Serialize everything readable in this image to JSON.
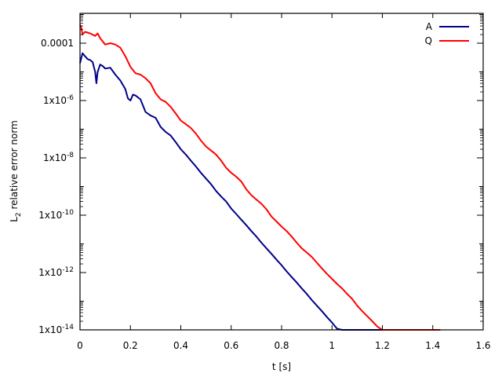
{
  "chart_data": {
    "type": "line",
    "title": "",
    "xlabel": "t [s]",
    "ylabel": "L2 relative error norm",
    "ylabel_main": "L",
    "ylabel_sub": "2",
    "ylabel_rest": " relative error norm",
    "xscale": "linear",
    "yscale": "log",
    "xlim": [
      0,
      1.6
    ],
    "ylim": [
      1e-14,
      0.0012
    ],
    "grid": false,
    "legend_position": "top-right",
    "x_ticks": [
      "0",
      "0.2",
      "0.4",
      "0.6",
      "0.8",
      "1",
      "1.2",
      "1.4",
      "1.6"
    ],
    "y_ticks": [
      {
        "value": 0.0001,
        "label": "0.0001",
        "base": "0.0001",
        "exp": ""
      },
      {
        "value": 1e-06,
        "label": "1x10-6",
        "base": "1x10",
        "exp": "-6"
      },
      {
        "value": 1e-08,
        "label": "1x10-8",
        "base": "1x10",
        "exp": "-8"
      },
      {
        "value": 1e-10,
        "label": "1x10-10",
        "base": "1x10",
        "exp": "-10"
      },
      {
        "value": 1e-12,
        "label": "1x10-12",
        "base": "1x10",
        "exp": "-12"
      },
      {
        "value": 1e-14,
        "label": "1x10-14",
        "base": "1x10",
        "exp": "-14"
      }
    ],
    "series": [
      {
        "name": "A",
        "color": "#00008b",
        "x": [
          0.0,
          0.005,
          0.01,
          0.02,
          0.03,
          0.04,
          0.05,
          0.06,
          0.065,
          0.07,
          0.08,
          0.09,
          0.1,
          0.12,
          0.14,
          0.16,
          0.18,
          0.19,
          0.2,
          0.21,
          0.22,
          0.24,
          0.26,
          0.28,
          0.3,
          0.32,
          0.34,
          0.36,
          0.38,
          0.4,
          0.42,
          0.44,
          0.46,
          0.48,
          0.5,
          0.52,
          0.54,
          0.56,
          0.58,
          0.6,
          0.62,
          0.64,
          0.66,
          0.68,
          0.7,
          0.72,
          0.74,
          0.76,
          0.78,
          0.8,
          0.82,
          0.84,
          0.86,
          0.88,
          0.9,
          0.92,
          0.94,
          0.96,
          0.98,
          1.0,
          1.02,
          1.04,
          1.06,
          1.08,
          1.1,
          1.12,
          1.14,
          1.16,
          1.18,
          1.2,
          1.22,
          1.24,
          1.26,
          1.28,
          1.3
        ],
        "y": [
          2e-05,
          3e-05,
          4.5e-05,
          3.5e-05,
          2.8e-05,
          2.6e-05,
          2.2e-05,
          1e-05,
          4e-06,
          1e-05,
          1.8e-05,
          1.6e-05,
          1.3e-05,
          1.4e-05,
          8e-06,
          5e-06,
          2.5e-06,
          1.2e-06,
          1e-06,
          1.6e-06,
          1.5e-06,
          1.1e-06,
          4e-07,
          3e-07,
          2.5e-07,
          1.2e-07,
          8e-08,
          6e-08,
          3.5e-08,
          2e-08,
          1.3e-08,
          8e-09,
          5e-09,
          3e-09,
          1.9e-09,
          1.2e-09,
          7e-10,
          4.5e-10,
          3e-10,
          1.7e-10,
          1.1e-10,
          7e-11,
          4.5e-11,
          2.8e-11,
          1.8e-11,
          1.1e-11,
          7e-12,
          4.5e-12,
          2.8e-12,
          1.8e-12,
          1.1e-12,
          7e-13,
          4.5e-13,
          2.8e-13,
          1.8e-13,
          1.1e-13,
          7e-14,
          4.5e-14,
          2.8e-14,
          1.8e-14,
          1.1e-14,
          7e-15,
          4.5e-15,
          2.8e-15,
          1.8e-15,
          1.1e-15,
          7e-16,
          4.5e-16,
          3e-16,
          2e-16,
          1.5e-16,
          1e-16,
          1e-16,
          1e-16,
          1e-16
        ]
      },
      {
        "name": "Q",
        "color": "#ff0000",
        "x": [
          0.0,
          0.005,
          0.01,
          0.02,
          0.04,
          0.06,
          0.07,
          0.08,
          0.1,
          0.12,
          0.14,
          0.16,
          0.18,
          0.2,
          0.22,
          0.24,
          0.26,
          0.28,
          0.3,
          0.32,
          0.34,
          0.36,
          0.38,
          0.4,
          0.42,
          0.44,
          0.46,
          0.48,
          0.5,
          0.52,
          0.54,
          0.56,
          0.58,
          0.6,
          0.62,
          0.64,
          0.66,
          0.68,
          0.7,
          0.72,
          0.74,
          0.76,
          0.78,
          0.8,
          0.82,
          0.84,
          0.86,
          0.88,
          0.9,
          0.92,
          0.94,
          0.96,
          0.98,
          1.0,
          1.02,
          1.04,
          1.06,
          1.08,
          1.1,
          1.12,
          1.14,
          1.16,
          1.18,
          1.2,
          1.22,
          1.24,
          1.26,
          1.28,
          1.3,
          1.32,
          1.34,
          1.36,
          1.38,
          1.4,
          1.43
        ],
        "y": [
          0.00045,
          0.00035,
          0.0002,
          0.00025,
          0.00022,
          0.00018,
          0.00022,
          0.00015,
          9e-05,
          0.0001,
          9e-05,
          7e-05,
          3.5e-05,
          1.5e-05,
          9e-06,
          8e-06,
          6e-06,
          4e-06,
          1.8e-06,
          1.1e-06,
          9e-07,
          6e-07,
          3.5e-07,
          2e-07,
          1.5e-07,
          1.1e-07,
          7e-08,
          4e-08,
          2.5e-08,
          1.8e-08,
          1.3e-08,
          8e-09,
          4.5e-09,
          3e-09,
          2.2e-09,
          1.5e-09,
          8e-10,
          5e-10,
          3.5e-10,
          2.5e-10,
          1.6e-10,
          9e-11,
          6e-11,
          4e-11,
          2.8e-11,
          1.8e-11,
          1.1e-11,
          7e-12,
          5e-12,
          3.5e-12,
          2.2e-12,
          1.4e-12,
          9e-13,
          6e-13,
          4e-13,
          2.8e-13,
          1.8e-13,
          1.2e-13,
          7e-14,
          4.5e-14,
          3e-14,
          2e-14,
          1.3e-14,
          8e-15,
          5e-15,
          3e-15,
          1.9e-15,
          1.2e-15,
          8e-16,
          5e-16,
          3e-16,
          2e-16,
          1e-16,
          1e-16,
          1e-16
        ]
      }
    ]
  },
  "legend": {
    "items": [
      {
        "label": "A",
        "color": "#00008b"
      },
      {
        "label": "Q",
        "color": "#ff0000"
      }
    ]
  }
}
